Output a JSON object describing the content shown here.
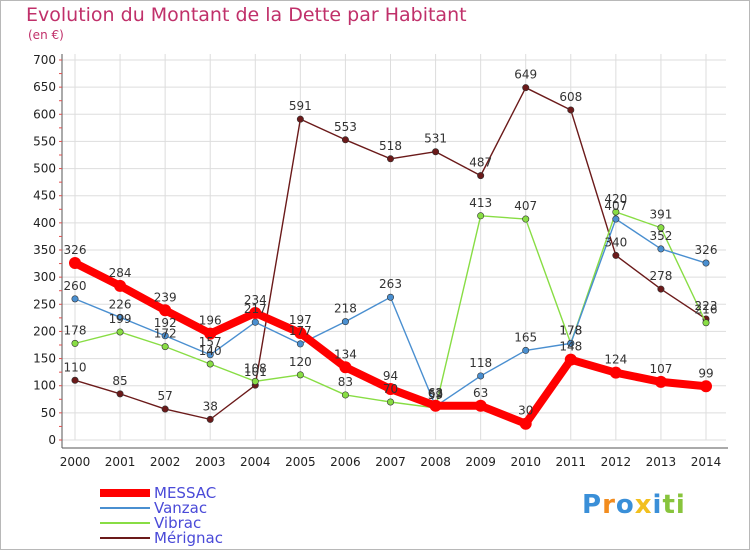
{
  "chart_data": {
    "type": "line",
    "title": "Evolution du Montant de la Dette par Habitant",
    "unit": "(en €)",
    "x": [
      "2000",
      "2001",
      "2002",
      "2003",
      "2004",
      "2005",
      "2006",
      "2007",
      "2008",
      "2009",
      "2010",
      "2011",
      "2012",
      "2013",
      "2014"
    ],
    "ylim": [
      0,
      700
    ],
    "yticks": [
      0,
      50,
      100,
      150,
      200,
      250,
      300,
      350,
      400,
      450,
      500,
      550,
      600,
      650,
      700
    ],
    "grid": true,
    "legend": "bottom-left",
    "series": [
      {
        "name": "MESSAC",
        "color": "#ff0000",
        "values": [
          326,
          284,
          239,
          196,
          234,
          197,
          134,
          94,
          63,
          63,
          30,
          148,
          124,
          107,
          99
        ]
      },
      {
        "name": "Vanzac",
        "color": "#4a8fd0",
        "values": [
          260,
          226,
          192,
          157,
          217,
          177,
          218,
          263,
          62,
          118,
          165,
          178,
          407,
          352,
          326
        ]
      },
      {
        "name": "Vibrac",
        "color": "#88dd44",
        "values": [
          178,
          199,
          172,
          140,
          108,
          120,
          83,
          70,
          59,
          413,
          407,
          178,
          420,
          391,
          216
        ]
      },
      {
        "name": "Mérignac",
        "color": "#6b1a1a",
        "values": [
          110,
          85,
          57,
          38,
          101,
          591,
          553,
          518,
          531,
          487,
          649,
          608,
          340,
          278,
          223
        ]
      }
    ]
  },
  "brand": {
    "letters": [
      "P",
      "r",
      "o",
      "x",
      "i",
      "t",
      "i"
    ],
    "colors": [
      "#3a8fd8",
      "#f28c1e",
      "#3a8fd8",
      "#f2c01e",
      "#3a8fd8",
      "#88c43c",
      "#88c43c"
    ]
  }
}
